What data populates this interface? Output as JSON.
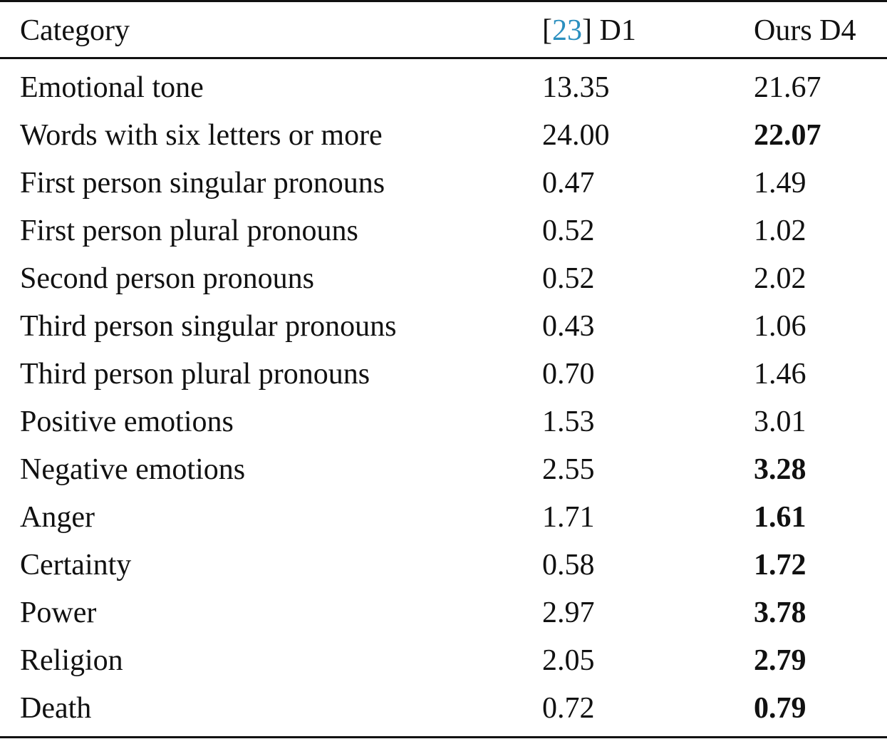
{
  "table": {
    "headers": {
      "category": "Category",
      "d1_ref_open": "[",
      "d1_ref": "23",
      "d1_ref_close": "]",
      "d1_suffix": " D1",
      "d4": "Ours D4"
    },
    "colors": {
      "ref_link": "#2a8fbf",
      "text": "#111111",
      "rules": "#111111"
    },
    "rows": [
      {
        "category": "Emotional tone",
        "d1": "13.35",
        "d4": "21.67",
        "d4_bold": false
      },
      {
        "category": "Words with six letters or more",
        "d1": "24.00",
        "d4": "22.07",
        "d4_bold": true
      },
      {
        "category": "First person singular pronouns",
        "d1": "0.47",
        "d4": "1.49",
        "d4_bold": false
      },
      {
        "category": "First person plural pronouns",
        "d1": "0.52",
        "d4": "1.02",
        "d4_bold": false
      },
      {
        "category": "Second person pronouns",
        "d1": "0.52",
        "d4": "2.02",
        "d4_bold": false
      },
      {
        "category": "Third person singular pronouns",
        "d1": "0.43",
        "d4": "1.06",
        "d4_bold": false
      },
      {
        "category": "Third person plural pronouns",
        "d1": "0.70",
        "d4": "1.46",
        "d4_bold": false
      },
      {
        "category": "Positive emotions",
        "d1": "1.53",
        "d4": "3.01",
        "d4_bold": false
      },
      {
        "category": "Negative emotions",
        "d1": "2.55",
        "d4": "3.28",
        "d4_bold": true
      },
      {
        "category": "Anger",
        "d1": "1.71",
        "d4": "1.61",
        "d4_bold": true
      },
      {
        "category": "Certainty",
        "d1": "0.58",
        "d4": "1.72",
        "d4_bold": true
      },
      {
        "category": "Power",
        "d1": "2.97",
        "d4": "3.78",
        "d4_bold": true
      },
      {
        "category": "Religion",
        "d1": "2.05",
        "d4": "2.79",
        "d4_bold": true
      },
      {
        "category": "Death",
        "d1": "0.72",
        "d4": "0.79",
        "d4_bold": true
      }
    ]
  }
}
